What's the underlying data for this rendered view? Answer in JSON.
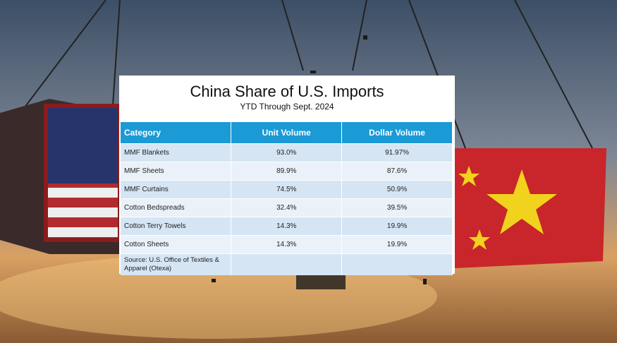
{
  "title": "China Share of U.S. Imports",
  "subtitle": "YTD Through Sept. 2024",
  "table": {
    "header": [
      "Category",
      "Unit Volume",
      "Dollar Volume"
    ],
    "rows": [
      [
        "MMF Blankets",
        "93.0%",
        "91.97%"
      ],
      [
        "MMF Sheets",
        "89.9%",
        "87.6%"
      ],
      [
        "MMF Curtains",
        "74.5%",
        "50.9%"
      ],
      [
        "Cotton Bedspreads",
        "32.4%",
        "39.5%"
      ],
      [
        "Cotton Terry Towels",
        "14.3%",
        "19.9%"
      ],
      [
        "Cotton Sheets",
        "14.3%",
        "19.9%"
      ]
    ],
    "source": "Source: U.S. Office of Textiles & Apparel (Otexa)"
  }
}
